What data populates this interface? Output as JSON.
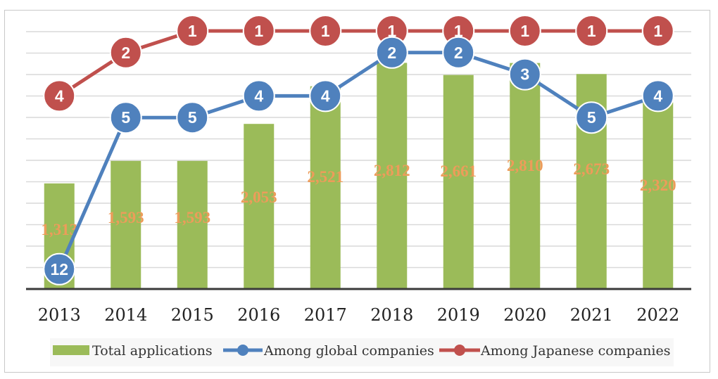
{
  "chart_data": {
    "type": "bar",
    "categories": [
      "2013",
      "2014",
      "2015",
      "2016",
      "2017",
      "2018",
      "2019",
      "2020",
      "2021",
      "2022"
    ],
    "series": [
      {
        "name": "Total applications",
        "type": "bar",
        "color": "#9bbb59",
        "values": [
          1313,
          1593,
          1593,
          2053,
          2521,
          2812,
          2661,
          2810,
          2673,
          2320
        ]
      },
      {
        "name": "Among global companies",
        "type": "line",
        "color": "#4f81bd",
        "values": [
          12,
          5,
          5,
          4,
          4,
          2,
          2,
          3,
          5,
          4
        ]
      },
      {
        "name": "Among Japanese companies",
        "type": "line",
        "color": "#c0504d",
        "values": [
          4,
          2,
          1,
          1,
          1,
          1,
          1,
          1,
          1,
          1
        ]
      }
    ],
    "bar_data_labels": [
      "1,313",
      "1,593",
      "1,593",
      "2,053",
      "2,521",
      "2,812",
      "2,661",
      "2,810",
      "2,673",
      "2,320"
    ],
    "title": "",
    "xlabel": "",
    "ylabel": "",
    "bar_ylim": [
      0,
      3200
    ],
    "rank_axis": "inverted",
    "rank_ylim": [
      1,
      13
    ],
    "grid": true,
    "legend_position": "bottom",
    "label_color": "#ed9c5a"
  }
}
